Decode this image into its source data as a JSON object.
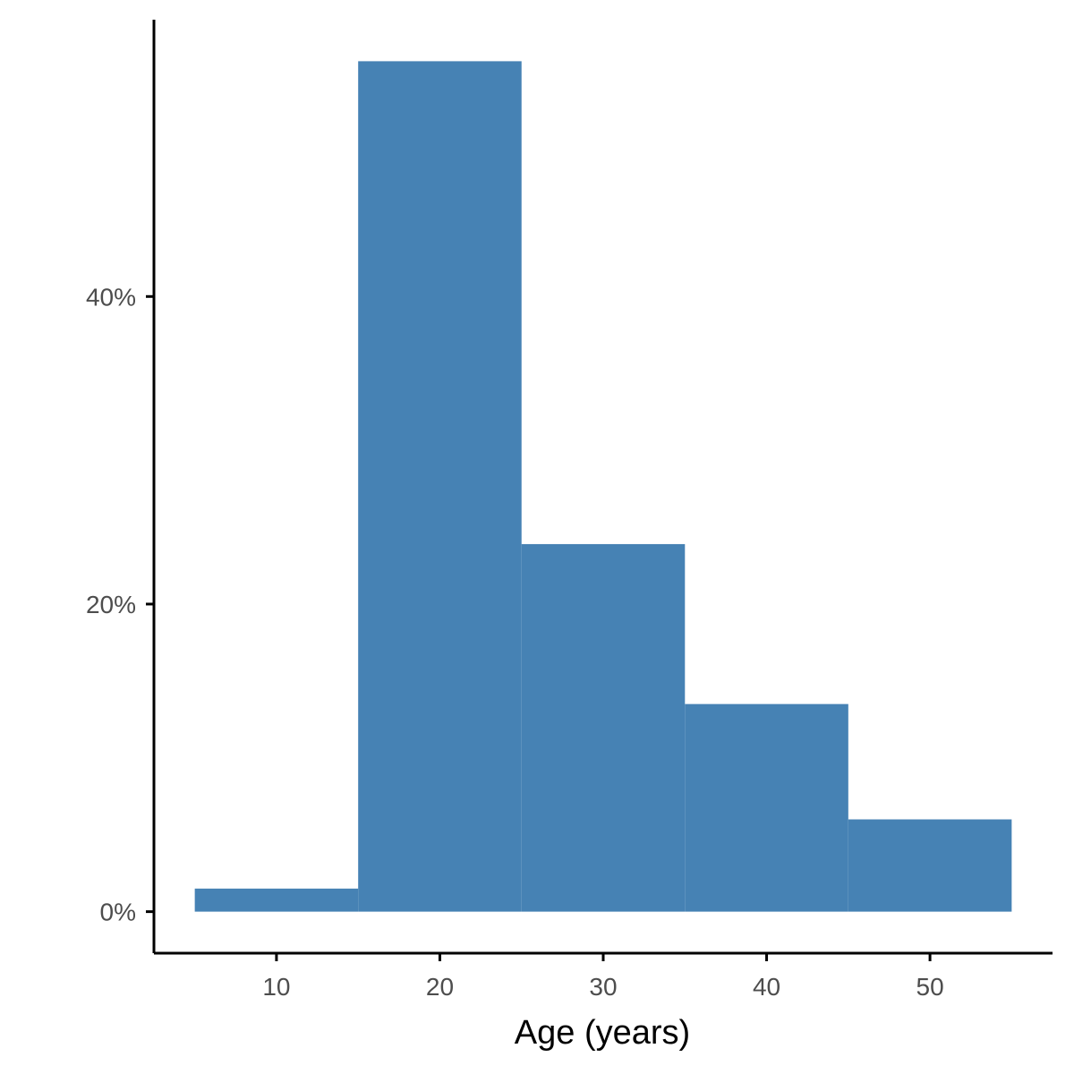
{
  "chart_data": {
    "type": "bar",
    "subtype": "histogram",
    "bins": [
      {
        "x0": 5,
        "x1": 15,
        "value": 1.5
      },
      {
        "x0": 15,
        "x1": 25,
        "value": 55.3
      },
      {
        "x0": 25,
        "x1": 35,
        "value": 23.9
      },
      {
        "x0": 35,
        "x1": 45,
        "value": 13.5
      },
      {
        "x0": 45,
        "x1": 55,
        "value": 6.0
      }
    ],
    "xlabel": "Age (years)",
    "ylabel": "",
    "xlim": [
      2.5,
      57.5
    ],
    "ylim": [
      -2.7,
      58.0
    ],
    "x_ticks": [
      10,
      20,
      30,
      40,
      50
    ],
    "x_tick_labels": [
      "10",
      "20",
      "30",
      "40",
      "50"
    ],
    "y_ticks": [
      0,
      20,
      40
    ],
    "y_tick_labels": [
      "0%",
      "20%",
      "40%"
    ],
    "grid": false,
    "legend": "none",
    "bar_color": "#4682b4"
  }
}
